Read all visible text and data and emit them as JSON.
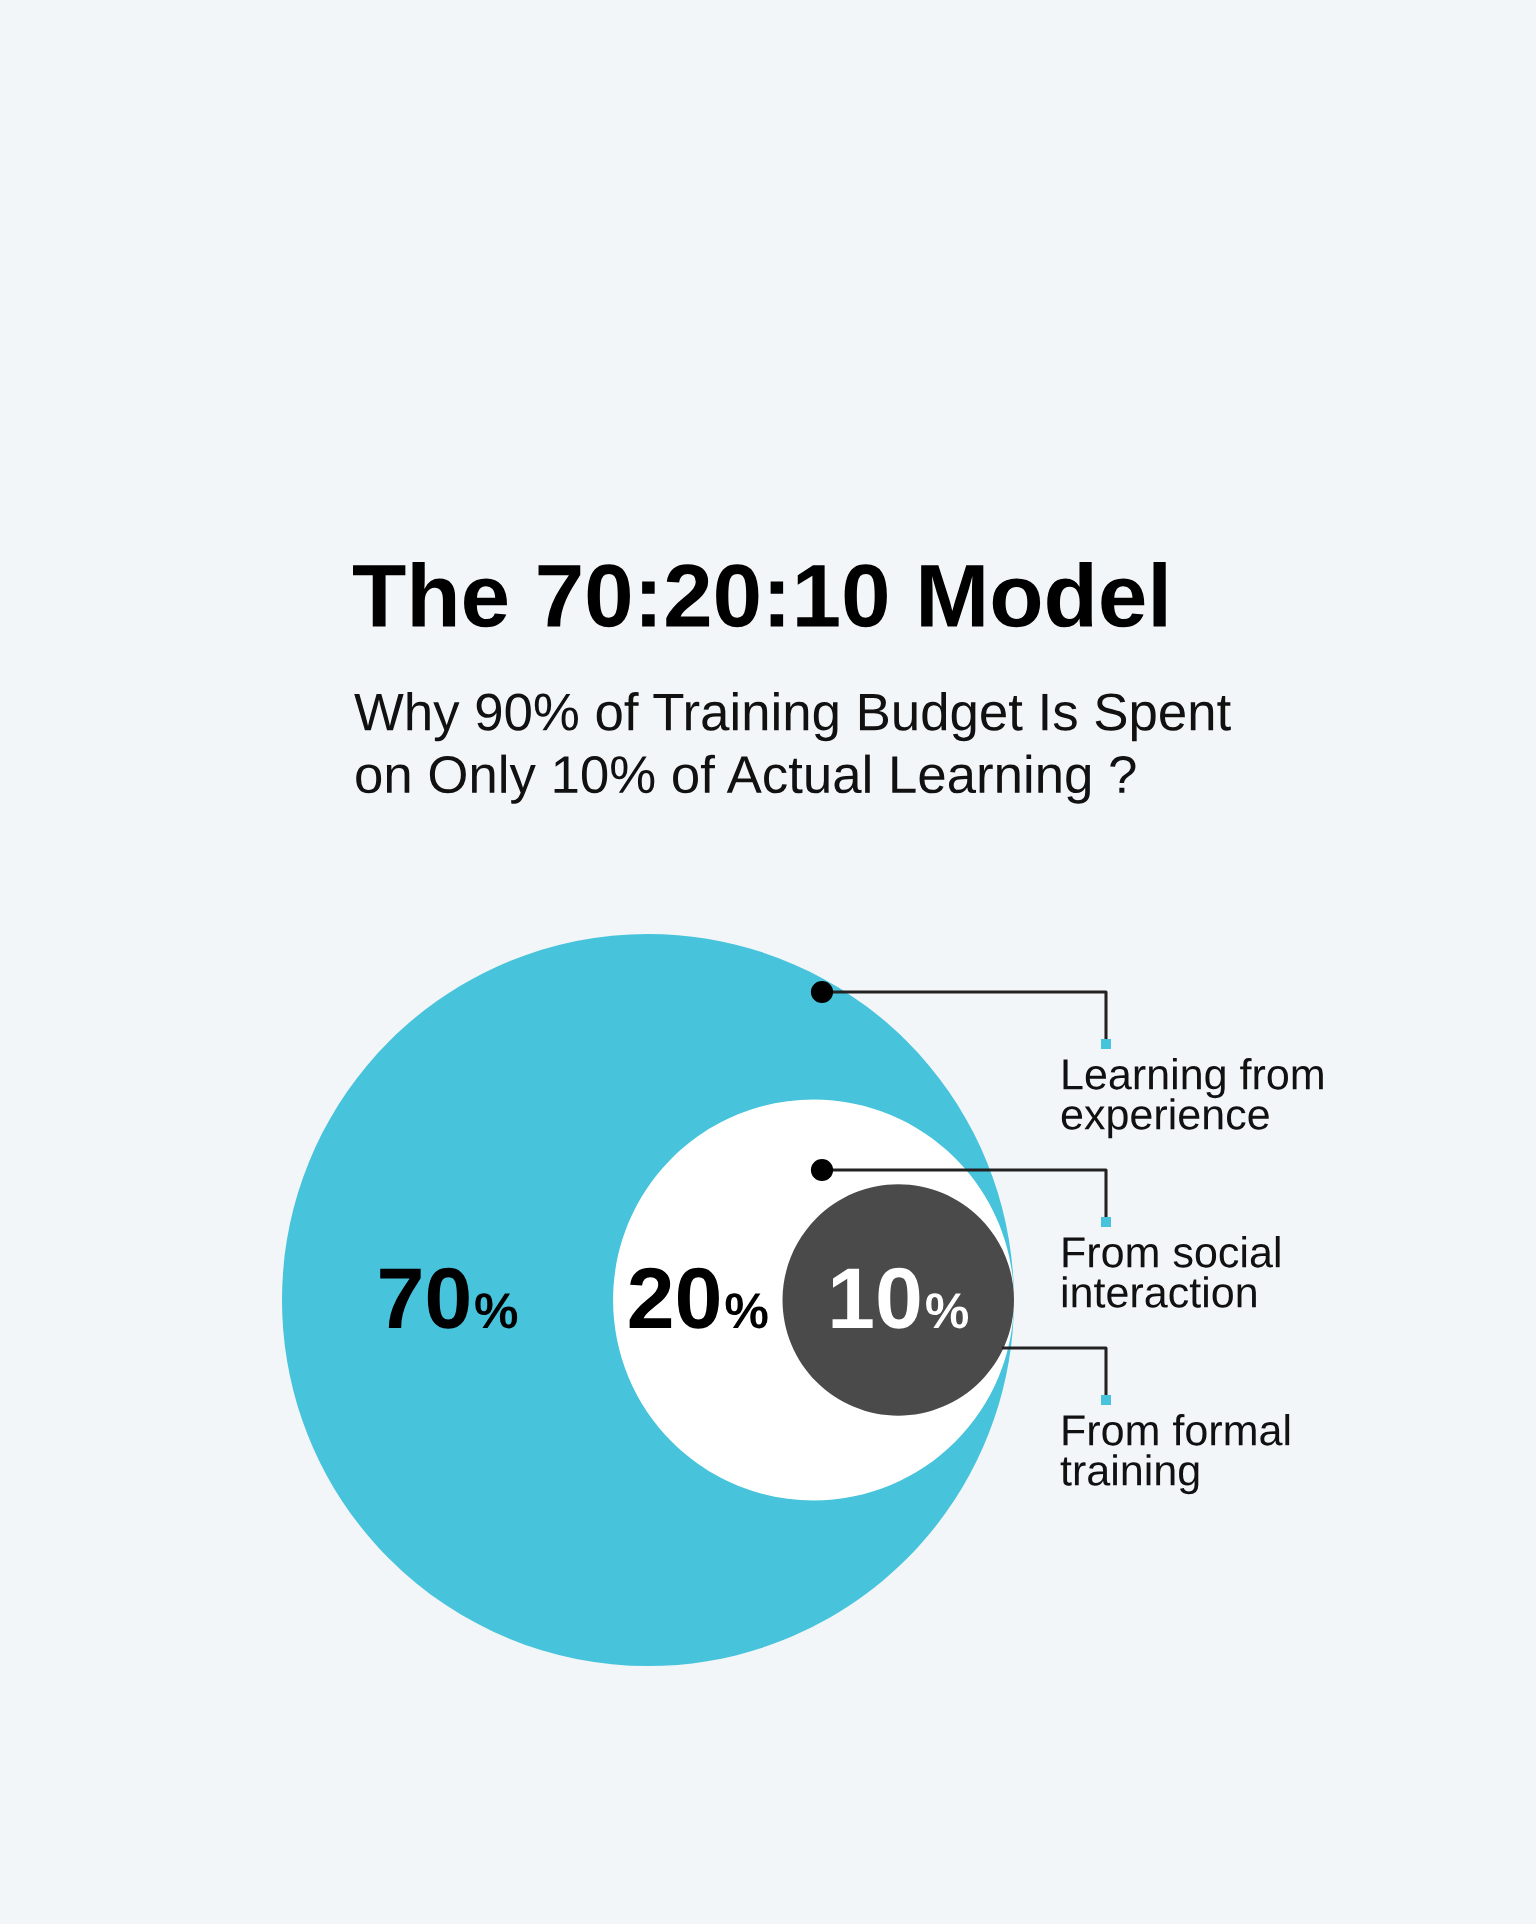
{
  "chart_data": {
    "type": "other",
    "title": "The 70:20:10 Model",
    "subtitle": "Why 90% of Training Budget Is Spent\non Only 10% of Actual Learning ?",
    "categories": [
      "Learning from\nexperience",
      "From social\ninteraction",
      "From formal\ntraining"
    ],
    "values": [
      70,
      20,
      10
    ],
    "colors": [
      "#47c3dc",
      "#ffffff",
      "#4a4a4a"
    ],
    "value_labels": [
      "70%",
      "20%",
      "10%"
    ]
  }
}
